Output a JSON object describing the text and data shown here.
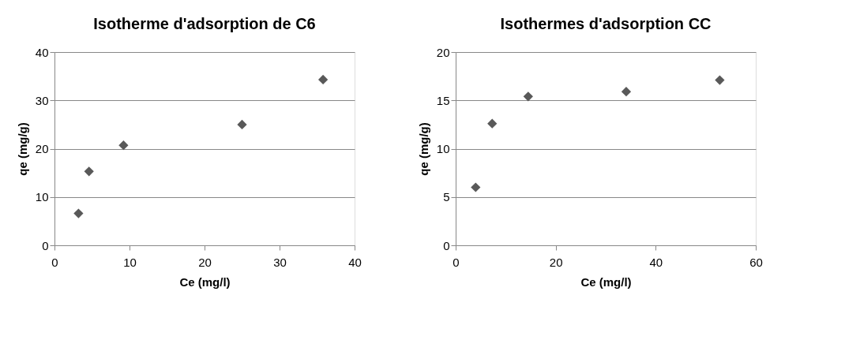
{
  "chart_data": [
    {
      "type": "scatter",
      "title": "Isotherme d'adsorption de C6",
      "xlabel": "Ce (mg/l)",
      "ylabel": "qe (mg/g)",
      "x": [
        3.2,
        4.6,
        9.2,
        25.0,
        35.8
      ],
      "series": [
        {
          "color": "#595959",
          "values": [
            6.6,
            15.3,
            20.7,
            25.0,
            34.3
          ]
        }
      ],
      "xlim": [
        0,
        40
      ],
      "xticks": [
        0,
        10,
        20,
        30,
        40
      ],
      "ylim": [
        0,
        40
      ],
      "yticks": [
        0,
        10,
        20,
        30,
        40
      ],
      "grid": "y",
      "marker": "diamond",
      "legend": false
    },
    {
      "type": "scatter",
      "title": "Isothermes d'adsorption CC",
      "xlabel": "Ce (mg/l)",
      "ylabel": "qe (mg/g)",
      "x": [
        4.0,
        7.3,
        14.5,
        34.1,
        52.8
      ],
      "series": [
        {
          "color": "#595959",
          "values": [
            6.0,
            12.6,
            15.4,
            15.9,
            17.1
          ]
        }
      ],
      "xlim": [
        0,
        60
      ],
      "xticks": [
        0,
        20,
        40,
        60
      ],
      "ylim": [
        0,
        20
      ],
      "yticks": [
        0,
        5,
        10,
        15,
        20
      ],
      "grid": "y",
      "marker": "diamond",
      "legend": false
    }
  ]
}
